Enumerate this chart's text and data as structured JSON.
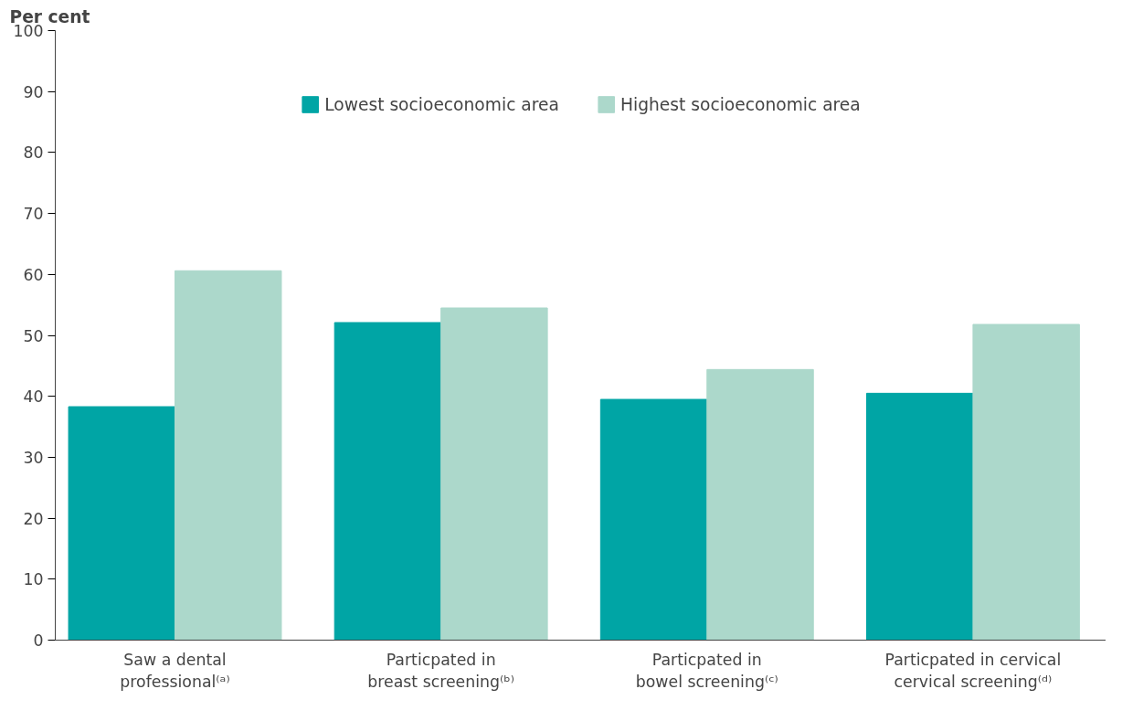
{
  "chart_data": {
    "type": "bar",
    "ylabel": "Per cent",
    "categories": [
      "Saw a dental professional⁽ᵃ⁾",
      "Particpated in breast screening⁽ᵇ⁾",
      "Particpated in bowel screening⁽ᶜ⁾",
      "Particpated in cervical cervical screening⁽ᵈ⁾"
    ],
    "series": [
      {
        "name": "Lowest socioeconomic area",
        "color": "#00a5a5",
        "values": [
          38.3,
          52.1,
          39.5,
          40.5
        ]
      },
      {
        "name": "Highest socioeconomic area",
        "color": "#acd8cb",
        "values": [
          60.6,
          54.5,
          44.4,
          51.8
        ]
      }
    ],
    "ylim": [
      0,
      100
    ],
    "yticks": [
      0,
      10,
      20,
      30,
      40,
      50,
      60,
      70,
      80,
      90,
      100
    ],
    "grid": false,
    "legend": "top"
  }
}
